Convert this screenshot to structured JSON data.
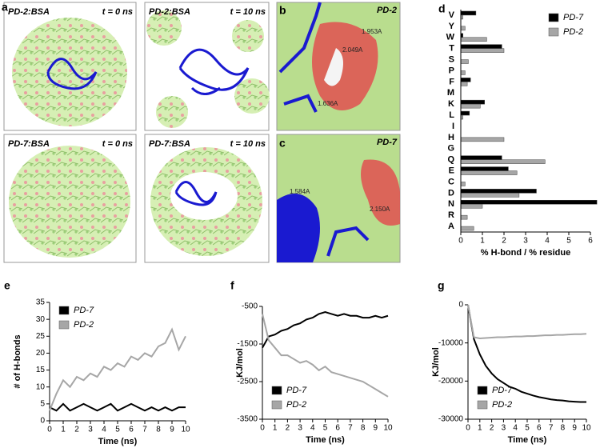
{
  "panel_labels": [
    "a",
    "b",
    "c",
    "d",
    "e",
    "f",
    "g"
  ],
  "images": [
    {
      "label": "PD-2:BSA",
      "time": "t = 0 ns"
    },
    {
      "label": "PD-2:BSA",
      "time": "t = 10 ns"
    },
    {
      "label": "PD-7:BSA",
      "time": "t = 0 ns"
    },
    {
      "label": "PD-7:BSA",
      "time": "t = 10 ns"
    }
  ],
  "zooms": [
    {
      "label": "PD-2",
      "distances": [
        "1.953A",
        "2.049A",
        "1.636A"
      ]
    },
    {
      "label": "PD-7",
      "distances": [
        "1.584A",
        "2.150A"
      ]
    }
  ],
  "chart_data": [
    {
      "type": "hbar",
      "xlabel": "% H-bond / % residue",
      "categories": [
        "A",
        "R",
        "N",
        "D",
        "C",
        "E",
        "Q",
        "G",
        "H",
        "I",
        "L",
        "K",
        "M",
        "F",
        "P",
        "S",
        "T",
        "W",
        "Y",
        "V"
      ],
      "series": [
        {
          "name": "PD-7",
          "color": "#000000",
          "values": [
            0,
            0,
            6.3,
            3.5,
            0,
            2.2,
            1.9,
            0,
            0,
            0,
            0.4,
            1.1,
            0,
            0.45,
            0,
            0,
            1.9,
            0.1,
            0,
            0.7
          ]
        },
        {
          "name": "PD-2",
          "color": "#a6a6a6",
          "values": [
            0.6,
            0.3,
            1.0,
            2.7,
            0.2,
            2.6,
            3.9,
            0,
            2.0,
            0,
            0.1,
            0.9,
            0,
            0.3,
            0.2,
            0.35,
            2.0,
            1.2,
            0.2,
            0.1
          ]
        }
      ],
      "xlim": [
        0,
        6
      ],
      "xticks": [
        0,
        1,
        2,
        3,
        4,
        5,
        6
      ],
      "legend": "upper right"
    },
    {
      "type": "line",
      "xlabel": "Time (ns)",
      "ylabel": "# of H-bonds",
      "x": [
        0,
        0.5,
        1,
        1.5,
        2,
        2.5,
        3,
        3.5,
        4,
        4.5,
        5,
        5.5,
        6,
        6.5,
        7,
        7.5,
        8,
        8.5,
        9,
        9.5,
        10
      ],
      "series": [
        {
          "name": "PD-7",
          "color": "#000000",
          "values": [
            4,
            3,
            5,
            3,
            4,
            5,
            4,
            3,
            4,
            5,
            3,
            4,
            5,
            4,
            3,
            4,
            3,
            4,
            3,
            4,
            4
          ]
        },
        {
          "name": "PD-2",
          "color": "#a6a6a6",
          "values": [
            3,
            8,
            12,
            10,
            13,
            12,
            14,
            13,
            16,
            15,
            17,
            16,
            19,
            18,
            20,
            19,
            22,
            23,
            27,
            21,
            25
          ]
        }
      ],
      "xlim": [
        0,
        10
      ],
      "xticks": [
        0,
        1,
        2,
        3,
        4,
        5,
        6,
        7,
        8,
        9,
        10
      ],
      "ylim": [
        0,
        35
      ],
      "yticks": [
        0,
        5,
        10,
        15,
        20,
        25,
        30,
        35
      ],
      "legend": "upper left"
    },
    {
      "type": "line",
      "xlabel": "Time (ns)",
      "ylabel": "KJ/mol",
      "x": [
        0,
        0.5,
        1,
        1.5,
        2,
        2.5,
        3,
        3.5,
        4,
        4.5,
        5,
        5.5,
        6,
        6.5,
        7,
        7.5,
        8,
        8.5,
        9,
        9.5,
        10
      ],
      "series": [
        {
          "name": "PD-7",
          "color": "#000000",
          "values": [
            -1600,
            -1300,
            -1250,
            -1150,
            -1100,
            -1000,
            -950,
            -850,
            -800,
            -700,
            -650,
            -700,
            -750,
            -700,
            -750,
            -750,
            -800,
            -800,
            -750,
            -800,
            -750
          ]
        },
        {
          "name": "PD-2",
          "color": "#a6a6a6",
          "values": [
            -700,
            -1400,
            -1600,
            -1800,
            -1800,
            -1900,
            -2000,
            -1950,
            -2050,
            -2200,
            -2100,
            -2250,
            -2300,
            -2350,
            -2400,
            -2450,
            -2500,
            -2600,
            -2700,
            -2800,
            -2900
          ]
        }
      ],
      "xlim": [
        0,
        10
      ],
      "xticks": [
        0,
        1,
        2,
        3,
        4,
        5,
        6,
        7,
        8,
        9,
        10
      ],
      "ylim": [
        -3500,
        -500
      ],
      "yticks": [
        -3500,
        -2500,
        -1500,
        -500
      ],
      "legend": "lower left"
    },
    {
      "type": "line",
      "xlabel": "Time (ns)",
      "ylabel": "KJ/mol",
      "x": [
        0,
        0.5,
        1,
        1.5,
        2,
        2.5,
        3,
        3.5,
        4,
        4.5,
        5,
        5.5,
        6,
        6.5,
        7,
        7.5,
        8,
        8.5,
        9,
        9.5,
        10
      ],
      "series": [
        {
          "name": "PD-7",
          "color": "#000000",
          "values": [
            0,
            -9000,
            -13000,
            -16000,
            -18000,
            -19500,
            -20500,
            -21500,
            -22000,
            -22800,
            -23300,
            -23800,
            -24200,
            -24500,
            -24800,
            -25000,
            -25100,
            -25300,
            -25400,
            -25500,
            -25500
          ]
        },
        {
          "name": "PD-2",
          "color": "#a6a6a6",
          "values": [
            0,
            -8500,
            -8800,
            -8700,
            -8600,
            -8500,
            -8500,
            -8400,
            -8300,
            -8300,
            -8200,
            -8200,
            -8100,
            -8000,
            -8000,
            -7900,
            -7900,
            -7800,
            -7700,
            -7700,
            -7600
          ]
        }
      ],
      "xlim": [
        0,
        10
      ],
      "xticks": [
        0,
        1,
        2,
        3,
        4,
        5,
        6,
        7,
        8,
        9,
        10
      ],
      "ylim": [
        -30000,
        0
      ],
      "yticks": [
        -30000,
        -20000,
        -10000,
        0
      ],
      "legend": "lower left"
    }
  ]
}
